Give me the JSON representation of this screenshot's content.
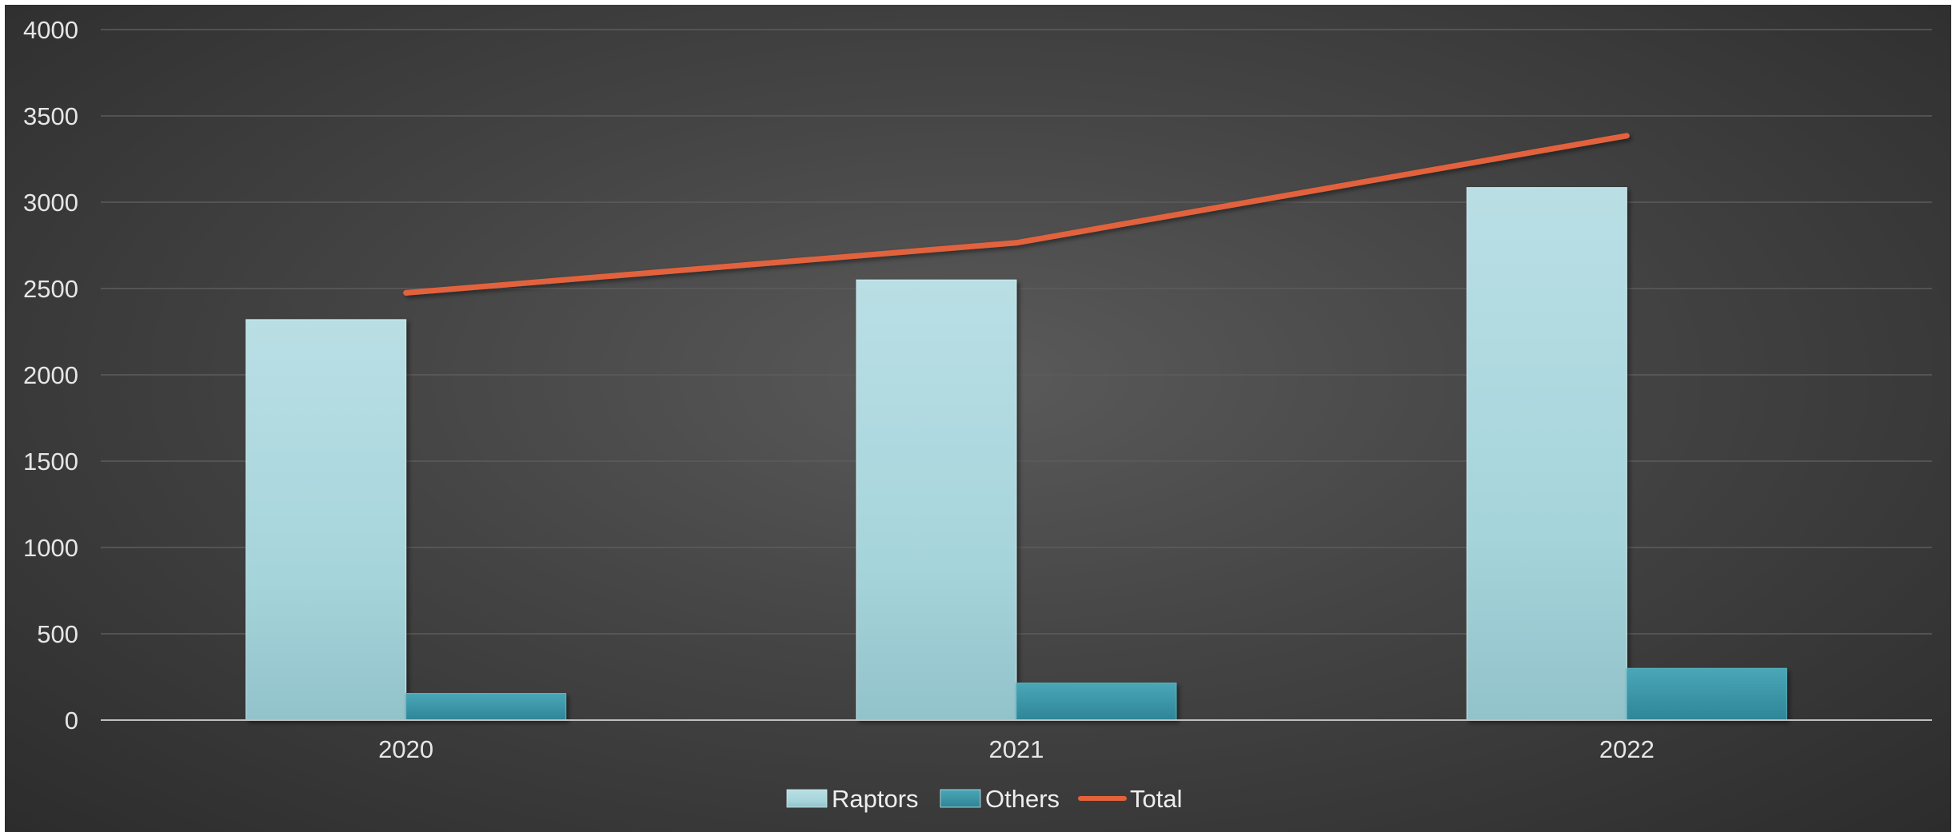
{
  "chart_data": {
    "type": "bar",
    "categories": [
      "2020",
      "2021",
      "2022"
    ],
    "series": [
      {
        "name": "Raptors",
        "kind": "bar",
        "values": [
          2320,
          2550,
          3085
        ]
      },
      {
        "name": "Others",
        "kind": "bar",
        "values": [
          155,
          215,
          300
        ]
      },
      {
        "name": "Total",
        "kind": "line",
        "values": [
          2475,
          2765,
          3385
        ]
      }
    ],
    "title": "",
    "xlabel": "",
    "ylabel": "",
    "ylim": [
      0,
      4000
    ],
    "yticks": [
      "0",
      "500",
      "1000",
      "1500",
      "2000",
      "2500",
      "3000",
      "3500",
      "4000"
    ],
    "grid": true,
    "legend": "bottom-center",
    "colors": {
      "Raptors": "#a8d6dd",
      "Others": "#3d97a8",
      "Total": "#e2623c",
      "background": "#444444",
      "grid": "#5c5c5c"
    }
  }
}
